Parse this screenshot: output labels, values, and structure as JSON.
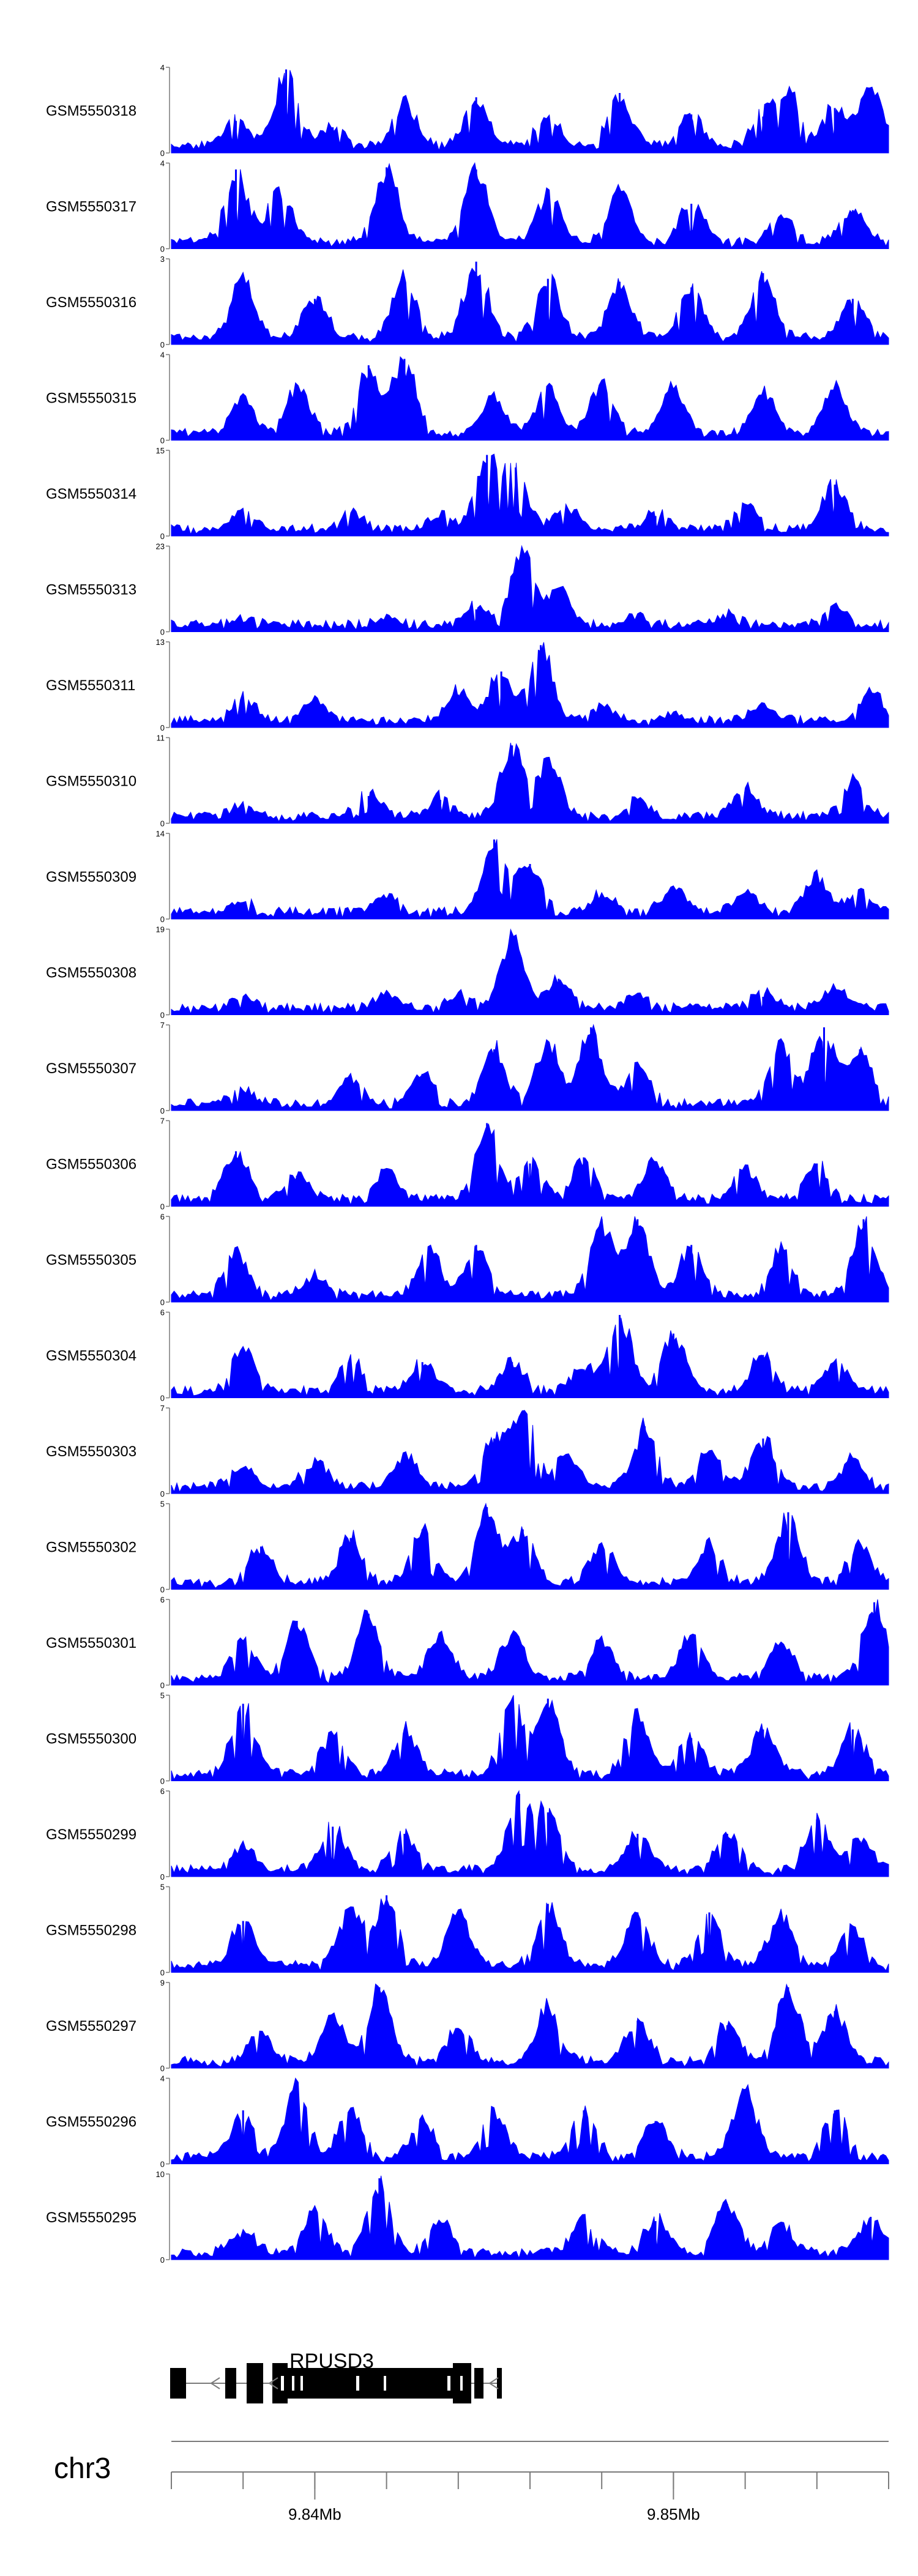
{
  "chart_data": {
    "type": "area",
    "series_color": "#0000ff",
    "tracks": [
      {
        "name": "GSM5550318",
        "ymax": 4,
        "peaks": [
          [
            9.8378,
            1.5
          ],
          [
            9.8392,
            3.9
          ],
          [
            9.8405,
            1.2
          ],
          [
            9.8425,
            2.4
          ],
          [
            9.8445,
            2.6
          ],
          [
            9.8465,
            1.6
          ],
          [
            9.8485,
            2.8
          ],
          [
            9.8505,
            1.8
          ],
          [
            9.8525,
            1.7
          ],
          [
            9.8532,
            2.8
          ],
          [
            9.8545,
            2.1
          ],
          [
            9.8555,
            3.0
          ]
        ]
      },
      {
        "name": "GSM5550317",
        "ymax": 4,
        "peaks": [
          [
            9.8378,
            3.7
          ],
          [
            9.839,
            2.8
          ],
          [
            9.842,
            3.8
          ],
          [
            9.8445,
            3.7
          ],
          [
            9.8465,
            2.6
          ],
          [
            9.8485,
            2.7
          ],
          [
            9.8505,
            2.1
          ],
          [
            9.853,
            1.4
          ],
          [
            9.855,
            1.8
          ]
        ]
      },
      {
        "name": "GSM5550316",
        "ymax": 3,
        "peaks": [
          [
            9.838,
            2.3
          ],
          [
            9.84,
            1.6
          ],
          [
            9.8425,
            2.3
          ],
          [
            9.8445,
            2.9
          ],
          [
            9.8465,
            2.3
          ],
          [
            9.8485,
            2.2
          ],
          [
            9.8505,
            2.0
          ],
          [
            9.8525,
            2.5
          ],
          [
            9.855,
            1.6
          ]
        ]
      },
      {
        "name": "GSM5550315",
        "ymax": 4,
        "peaks": [
          [
            9.838,
            1.8
          ],
          [
            9.8395,
            2.6
          ],
          [
            9.8415,
            3.5
          ],
          [
            9.8425,
            3.8
          ],
          [
            9.845,
            1.9
          ],
          [
            9.8465,
            2.3
          ],
          [
            9.848,
            2.6
          ],
          [
            9.85,
            2.4
          ],
          [
            9.8525,
            2.2
          ],
          [
            9.8545,
            2.5
          ]
        ]
      },
      {
        "name": "GSM5550314",
        "ymax": 15,
        "peaks": [
          [
            9.838,
            4.0
          ],
          [
            9.841,
            3.5
          ],
          [
            9.8435,
            3.0
          ],
          [
            9.8448,
            14.2
          ],
          [
            9.8456,
            12.0
          ],
          [
            9.847,
            4.5
          ],
          [
            9.8495,
            3.5
          ],
          [
            9.852,
            5.0
          ],
          [
            9.8545,
            9.0
          ]
        ]
      },
      {
        "name": "GSM5550313",
        "ymax": 23,
        "peaks": [
          [
            9.838,
            2.0
          ],
          [
            9.842,
            2.5
          ],
          [
            9.8445,
            6.0
          ],
          [
            9.8458,
            21.5
          ],
          [
            9.8468,
            11.0
          ],
          [
            9.849,
            2.5
          ],
          [
            9.8515,
            3.0
          ],
          [
            9.8545,
            6.0
          ]
        ]
      },
      {
        "name": "GSM5550311",
        "ymax": 13,
        "peaks": [
          [
            9.838,
            4.5
          ],
          [
            9.84,
            3.5
          ],
          [
            9.844,
            5.0
          ],
          [
            9.8452,
            8.5
          ],
          [
            9.8463,
            12.5
          ],
          [
            9.848,
            2.5
          ],
          [
            9.85,
            1.0
          ],
          [
            9.8525,
            3.0
          ],
          [
            9.8555,
            5.0
          ]
        ]
      },
      {
        "name": "GSM5550310",
        "ymax": 11,
        "peaks": [
          [
            9.838,
            1.5
          ],
          [
            9.8415,
            3.5
          ],
          [
            9.8435,
            3.0
          ],
          [
            9.8455,
            10.0
          ],
          [
            9.8465,
            8.0
          ],
          [
            9.849,
            2.5
          ],
          [
            9.852,
            4.0
          ],
          [
            9.855,
            5.0
          ]
        ]
      },
      {
        "name": "GSM5550309",
        "ymax": 14,
        "peaks": [
          [
            9.838,
            2.0
          ],
          [
            9.842,
            3.5
          ],
          [
            9.845,
            13.0
          ],
          [
            9.846,
            9.0
          ],
          [
            9.848,
            3.5
          ],
          [
            9.85,
            4.5
          ],
          [
            9.852,
            3.5
          ],
          [
            9.854,
            7.0
          ],
          [
            9.8552,
            4.0
          ]
        ]
      },
      {
        "name": "GSM5550308",
        "ymax": 19,
        "peaks": [
          [
            9.838,
            2.5
          ],
          [
            9.842,
            3.5
          ],
          [
            9.844,
            3.5
          ],
          [
            9.8455,
            18.0
          ],
          [
            9.8468,
            8.0
          ],
          [
            9.849,
            3.0
          ],
          [
            9.8525,
            4.0
          ],
          [
            9.8545,
            5.5
          ]
        ]
      },
      {
        "name": "GSM5550307",
        "ymax": 7,
        "peaks": [
          [
            9.838,
            1.5
          ],
          [
            9.841,
            2.5
          ],
          [
            9.843,
            3.0
          ],
          [
            9.845,
            5.0
          ],
          [
            9.8465,
            5.5
          ],
          [
            9.8477,
            6.8
          ],
          [
            9.849,
            3.5
          ],
          [
            9.853,
            5.5
          ],
          [
            9.8542,
            6.8
          ],
          [
            9.8552,
            5.0
          ]
        ]
      },
      {
        "name": "GSM5550306",
        "ymax": 7,
        "peaks": [
          [
            9.8378,
            4.5
          ],
          [
            9.8395,
            2.5
          ],
          [
            9.842,
            2.5
          ],
          [
            9.8448,
            6.8
          ],
          [
            9.846,
            3.5
          ],
          [
            9.8475,
            4.0
          ],
          [
            9.8495,
            3.5
          ],
          [
            9.852,
            3.0
          ],
          [
            9.854,
            3.5
          ]
        ]
      },
      {
        "name": "GSM5550305",
        "ymax": 6,
        "peaks": [
          [
            9.8378,
            3.5
          ],
          [
            9.84,
            1.5
          ],
          [
            9.8432,
            3.5
          ],
          [
            9.8445,
            4.0
          ],
          [
            9.848,
            5.8
          ],
          [
            9.849,
            5.8
          ],
          [
            9.8505,
            4.0
          ],
          [
            9.853,
            3.5
          ],
          [
            9.8553,
            5.8
          ]
        ]
      },
      {
        "name": "GSM5550304",
        "ymax": 6,
        "peaks": [
          [
            9.838,
            3.5
          ],
          [
            9.841,
            2.5
          ],
          [
            9.843,
            2.5
          ],
          [
            9.8455,
            2.5
          ],
          [
            9.8475,
            2.0
          ],
          [
            9.8485,
            5.8
          ],
          [
            9.85,
            4.5
          ],
          [
            9.8525,
            3.0
          ],
          [
            9.8545,
            2.5
          ]
        ]
      },
      {
        "name": "GSM5550303",
        "ymax": 7,
        "peaks": [
          [
            9.838,
            2.0
          ],
          [
            9.84,
            2.5
          ],
          [
            9.8425,
            3.0
          ],
          [
            9.845,
            4.5
          ],
          [
            9.8458,
            6.8
          ],
          [
            9.847,
            3.0
          ],
          [
            9.8492,
            5.5
          ],
          [
            9.851,
            3.5
          ],
          [
            9.8525,
            4.5
          ],
          [
            9.855,
            2.5
          ]
        ]
      },
      {
        "name": "GSM5550302",
        "ymax": 5,
        "peaks": [
          [
            9.8385,
            2.5
          ],
          [
            9.841,
            3.0
          ],
          [
            9.843,
            3.5
          ],
          [
            9.8448,
            4.8
          ],
          [
            9.8458,
            3.5
          ],
          [
            9.848,
            2.5
          ],
          [
            9.851,
            2.5
          ],
          [
            9.8532,
            4.5
          ],
          [
            9.8552,
            2.5
          ]
        ]
      },
      {
        "name": "GSM5550301",
        "ymax": 6,
        "peaks": [
          [
            9.838,
            3.0
          ],
          [
            9.8395,
            4.5
          ],
          [
            9.8415,
            5.0
          ],
          [
            9.8435,
            3.5
          ],
          [
            9.8455,
            3.5
          ],
          [
            9.848,
            3.0
          ],
          [
            9.8505,
            3.5
          ],
          [
            9.853,
            3.0
          ],
          [
            9.8556,
            5.8
          ]
        ]
      },
      {
        "name": "GSM5550300",
        "ymax": 5,
        "peaks": [
          [
            9.838,
            4.5
          ],
          [
            9.8405,
            2.5
          ],
          [
            9.8425,
            3.0
          ],
          [
            9.8455,
            4.5
          ],
          [
            9.8465,
            4.8
          ],
          [
            9.849,
            4.0
          ],
          [
            9.8505,
            2.5
          ],
          [
            9.8525,
            3.0
          ],
          [
            9.855,
            3.0
          ]
        ]
      },
      {
        "name": "GSM5550299",
        "ymax": 6,
        "peaks": [
          [
            9.838,
            2.0
          ],
          [
            9.8405,
            3.5
          ],
          [
            9.8425,
            3.0
          ],
          [
            9.8457,
            5.8
          ],
          [
            9.8465,
            4.5
          ],
          [
            9.849,
            3.0
          ],
          [
            9.8515,
            3.0
          ],
          [
            9.854,
            4.0
          ],
          [
            9.8552,
            2.5
          ]
        ]
      },
      {
        "name": "GSM5550298",
        "ymax": 5,
        "peaks": [
          [
            9.838,
            3.0
          ],
          [
            9.841,
            3.8
          ],
          [
            9.842,
            4.5
          ],
          [
            9.844,
            3.5
          ],
          [
            9.8465,
            4.0
          ],
          [
            9.849,
            3.5
          ],
          [
            9.851,
            3.5
          ],
          [
            9.853,
            3.5
          ],
          [
            9.855,
            2.5
          ]
        ]
      },
      {
        "name": "GSM5550297",
        "ymax": 9,
        "peaks": [
          [
            9.8385,
            3.5
          ],
          [
            9.8405,
            5.0
          ],
          [
            9.8418,
            8.5
          ],
          [
            9.844,
            4.0
          ],
          [
            9.8465,
            6.5
          ],
          [
            9.849,
            5.0
          ],
          [
            9.8515,
            4.5
          ],
          [
            9.8532,
            8.5
          ],
          [
            9.8545,
            6.0
          ]
        ]
      },
      {
        "name": "GSM5550296",
        "ymax": 4,
        "peaks": [
          [
            9.838,
            2.5
          ],
          [
            9.8395,
            3.8
          ],
          [
            9.841,
            2.5
          ],
          [
            9.843,
            2.0
          ],
          [
            9.845,
            2.5
          ],
          [
            9.8475,
            2.5
          ],
          [
            9.8495,
            2.0
          ],
          [
            9.852,
            3.5
          ],
          [
            9.8545,
            2.5
          ]
        ]
      },
      {
        "name": "GSM5550295",
        "ymax": 10,
        "peaks": [
          [
            9.838,
            3.0
          ],
          [
            9.84,
            5.5
          ],
          [
            9.8418,
            9.5
          ],
          [
            9.8435,
            4.0
          ],
          [
            9.8475,
            4.5
          ],
          [
            9.8495,
            4.5
          ],
          [
            9.8515,
            6.5
          ],
          [
            9.853,
            4.0
          ],
          [
            9.8555,
            5.0
          ]
        ]
      }
    ],
    "gene": {
      "name": "RPUSD3",
      "strand": "-"
    },
    "chromosome": "chr3",
    "xaxis": {
      "range": [
        9.836,
        9.856
      ],
      "major_ticks": [
        9.84,
        9.85
      ],
      "tick_labels": [
        "9.84Mb",
        "9.85Mb"
      ],
      "minor_tick_step": 0.002
    }
  }
}
